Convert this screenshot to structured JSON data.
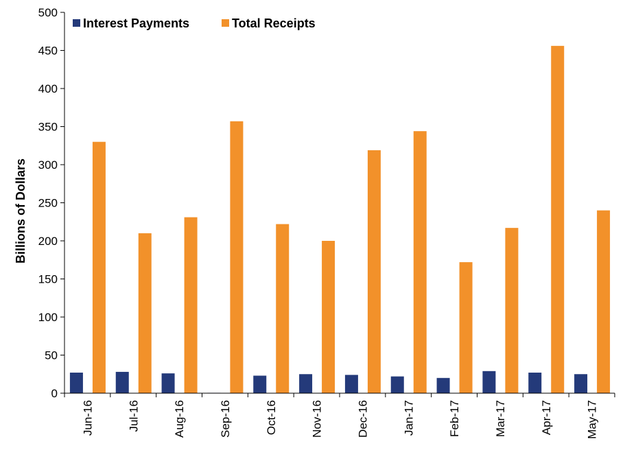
{
  "chart_data": {
    "type": "bar",
    "title": "",
    "xlabel": "",
    "ylabel": "Billions of Dollars",
    "ylim": [
      0,
      500
    ],
    "yticks": [
      0,
      50,
      100,
      150,
      200,
      250,
      300,
      350,
      400,
      450,
      500
    ],
    "categories": [
      "Jun-16",
      "Jul-16",
      "Aug-16",
      "Sep-16",
      "Oct-16",
      "Nov-16",
      "Dec-16",
      "Jan-17",
      "Feb-17",
      "Mar-17",
      "Apr-17",
      "May-17"
    ],
    "series": [
      {
        "name": "Interest Payments",
        "color": "#243a7a",
        "values": [
          27,
          28,
          26,
          0.5,
          23,
          25,
          24,
          22,
          20,
          29,
          27,
          25
        ]
      },
      {
        "name": "Total Receipts",
        "color": "#f2912a",
        "values": [
          330,
          210,
          231,
          357,
          222,
          200,
          319,
          344,
          172,
          217,
          456,
          240
        ]
      }
    ],
    "legend_position": "top-left",
    "grid": false
  }
}
